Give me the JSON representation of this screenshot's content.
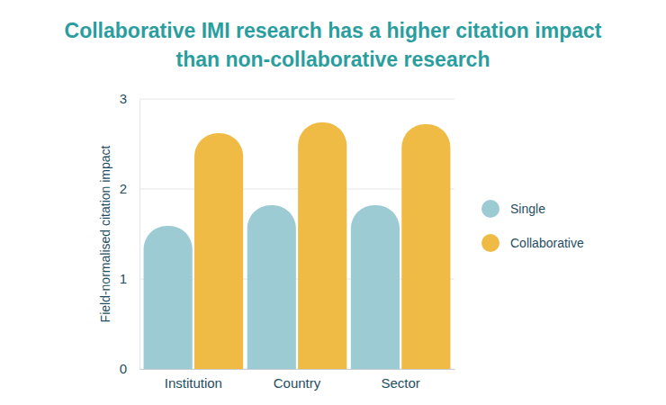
{
  "chart_data": {
    "type": "bar",
    "title": "Collaborative IMI research has a higher citation impact than non-collaborative research",
    "y_label": "Field-normalised citation impact",
    "categories": [
      "Institution",
      "Country",
      "Sector"
    ],
    "series": [
      {
        "name": "Single",
        "color": "#9ccbd4",
        "values": [
          1.59,
          1.82,
          1.82
        ]
      },
      {
        "name": "Collaborative",
        "color": "#f0bb45",
        "values": [
          2.62,
          2.74,
          2.72
        ]
      }
    ],
    "ylim": [
      0,
      3
    ],
    "yticks": [
      0,
      1,
      2,
      3
    ],
    "grid": true,
    "legend": "right"
  }
}
